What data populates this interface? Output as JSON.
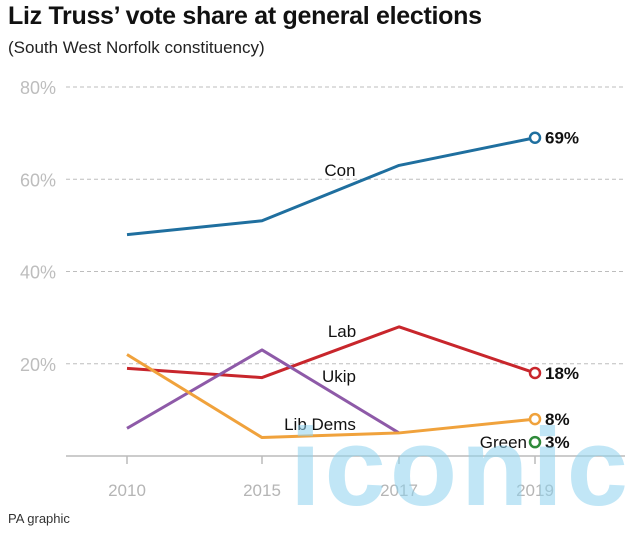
{
  "title": "Liz Truss’ vote share at general elections",
  "subtitle": "(South West Norfolk constituency)",
  "credit": "PA graphic",
  "watermark": "iconic",
  "chart_data": {
    "type": "line",
    "x": [
      "2010",
      "2015",
      "2017",
      "2019"
    ],
    "y_ticks": [
      "80%",
      "60%",
      "40%",
      "20%"
    ],
    "y_tick_values": [
      80,
      60,
      40,
      20
    ],
    "ylim": [
      0,
      80
    ],
    "grid": true,
    "series": [
      {
        "name": "Con",
        "values": [
          48,
          51,
          63,
          69
        ],
        "color": "#1f6f9f",
        "end_label": "69%"
      },
      {
        "name": "Lab",
        "values": [
          19,
          17,
          28,
          18
        ],
        "color": "#c8262c",
        "end_label": "18%"
      },
      {
        "name": "Ukip",
        "values": [
          6,
          23,
          5,
          null
        ],
        "color": "#8e5aa8",
        "end_label": ""
      },
      {
        "name": "Lib Dems",
        "values": [
          22,
          4,
          5,
          8
        ],
        "color": "#f0a23c",
        "end_label": "8%"
      },
      {
        "name": "Green",
        "values": [
          null,
          null,
          null,
          3
        ],
        "color": "#2f8a3a",
        "end_label": "3%"
      }
    ]
  }
}
